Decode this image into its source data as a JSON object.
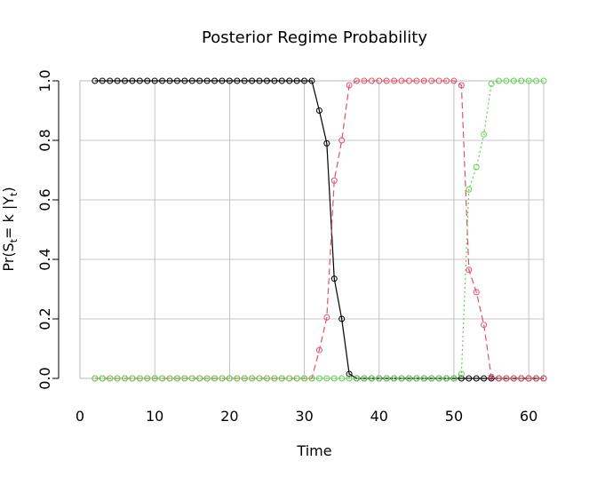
{
  "chart_data": {
    "type": "line",
    "title": "Posterior Regime Probability",
    "xlabel": "Time",
    "ylabel": {
      "main": "Pr(S",
      "sub1": "t",
      "mid": "= k |Y",
      "sub2": "t",
      "end": ")"
    },
    "xlim": [
      0,
      62
    ],
    "ylim": [
      0,
      1
    ],
    "xticks": [
      0,
      10,
      20,
      30,
      40,
      50,
      60
    ],
    "yticks": [
      "0.0",
      "0.2",
      "0.4",
      "0.6",
      "0.8",
      "1.0"
    ],
    "grid": true,
    "x": [
      2,
      3,
      4,
      5,
      6,
      7,
      8,
      9,
      10,
      11,
      12,
      13,
      14,
      15,
      16,
      17,
      18,
      19,
      20,
      21,
      22,
      23,
      24,
      25,
      26,
      27,
      28,
      29,
      30,
      31,
      32,
      33,
      34,
      35,
      36,
      37,
      38,
      39,
      40,
      41,
      42,
      43,
      44,
      45,
      46,
      47,
      48,
      49,
      50,
      51,
      52,
      53,
      54,
      55,
      56,
      57,
      58,
      59,
      60,
      61,
      62
    ],
    "series": [
      {
        "color": "#000000",
        "dash": "none",
        "values": [
          1,
          1,
          1,
          1,
          1,
          1,
          1,
          1,
          1,
          1,
          1,
          1,
          1,
          1,
          1,
          1,
          1,
          1,
          1,
          1,
          1,
          1,
          1,
          1,
          1,
          1,
          1,
          1,
          1,
          1,
          0.9,
          0.79,
          0.335,
          0.2,
          0.015,
          0,
          0,
          0,
          0,
          0,
          0,
          0,
          0,
          0,
          0,
          0,
          0,
          0,
          0,
          0,
          0,
          0,
          0,
          0,
          0,
          0,
          0,
          0,
          0,
          0,
          0
        ]
      },
      {
        "color": "#df536b",
        "dash": "7,4",
        "values": [
          0,
          0,
          0,
          0,
          0,
          0,
          0,
          0,
          0,
          0,
          0,
          0,
          0,
          0,
          0,
          0,
          0,
          0,
          0,
          0,
          0,
          0,
          0,
          0,
          0,
          0,
          0,
          0,
          0,
          0,
          0.095,
          0.205,
          0.665,
          0.8,
          0.985,
          1,
          1,
          1,
          1,
          1,
          1,
          1,
          1,
          1,
          1,
          1,
          1,
          1,
          1,
          0.985,
          0.365,
          0.29,
          0.18,
          0.005,
          0,
          0,
          0,
          0,
          0,
          0,
          0
        ]
      },
      {
        "color": "#61d04f",
        "dash": "2,3",
        "values": [
          0,
          0,
          0,
          0,
          0,
          0,
          0,
          0,
          0,
          0,
          0,
          0,
          0,
          0,
          0,
          0,
          0,
          0,
          0,
          0,
          0,
          0,
          0,
          0,
          0,
          0,
          0,
          0,
          0,
          0,
          0,
          0,
          0,
          0,
          0,
          0,
          0,
          0,
          0,
          0,
          0,
          0,
          0,
          0,
          0,
          0,
          0,
          0,
          0,
          0.015,
          0.635,
          0.71,
          0.82,
          0.99,
          1,
          1,
          1,
          1,
          1,
          1,
          1
        ]
      }
    ]
  }
}
